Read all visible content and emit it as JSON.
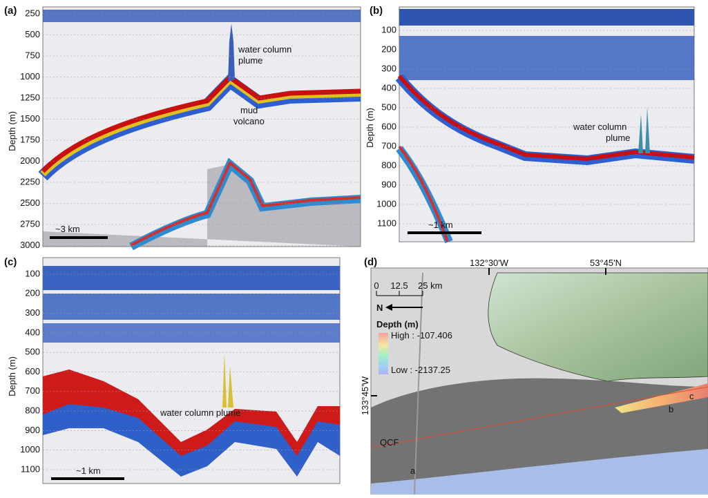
{
  "panels": [
    {
      "label": "(a)",
      "axis_label": "Depth (m)",
      "ticks": [
        "250",
        "500",
        "750",
        "1000",
        "1250",
        "1500",
        "1750",
        "2000",
        "2250",
        "2500",
        "2750",
        "3000"
      ],
      "annotations": [
        {
          "lines": [
            "water column",
            "plume"
          ]
        },
        {
          "lines": [
            "mud",
            "volcano"
          ]
        }
      ],
      "scale": "~3 km"
    },
    {
      "label": "(b)",
      "axis_label": "Depth (m)",
      "ticks": [
        "100",
        "200",
        "300",
        "400",
        "500",
        "600",
        "700",
        "800",
        "900",
        "1000",
        "1100"
      ],
      "annotations": [
        {
          "lines": [
            "water column",
            "plume"
          ]
        }
      ],
      "scale": "~1 km"
    },
    {
      "label": "(c)",
      "axis_label": "Depth (m)",
      "ticks": [
        "100",
        "200",
        "300",
        "400",
        "500",
        "600",
        "700",
        "800",
        "900",
        "1000",
        "1100"
      ],
      "annotations": [
        {
          "lines": [
            "water column plume"
          ]
        }
      ],
      "scale": "~1 km"
    }
  ],
  "map": {
    "label": "(d)",
    "top_labels": [
      "132°30'W",
      "53°45'N"
    ],
    "side_label": "133°45'W",
    "scale_labels": [
      "0",
      "12.5",
      "25 km"
    ],
    "north": "N",
    "legend_title": "Depth (m)",
    "legend_high": "High : -107.406",
    "legend_low": "Low : -2137.25",
    "features": [
      "QCF",
      "a",
      "b",
      "c"
    ]
  }
}
